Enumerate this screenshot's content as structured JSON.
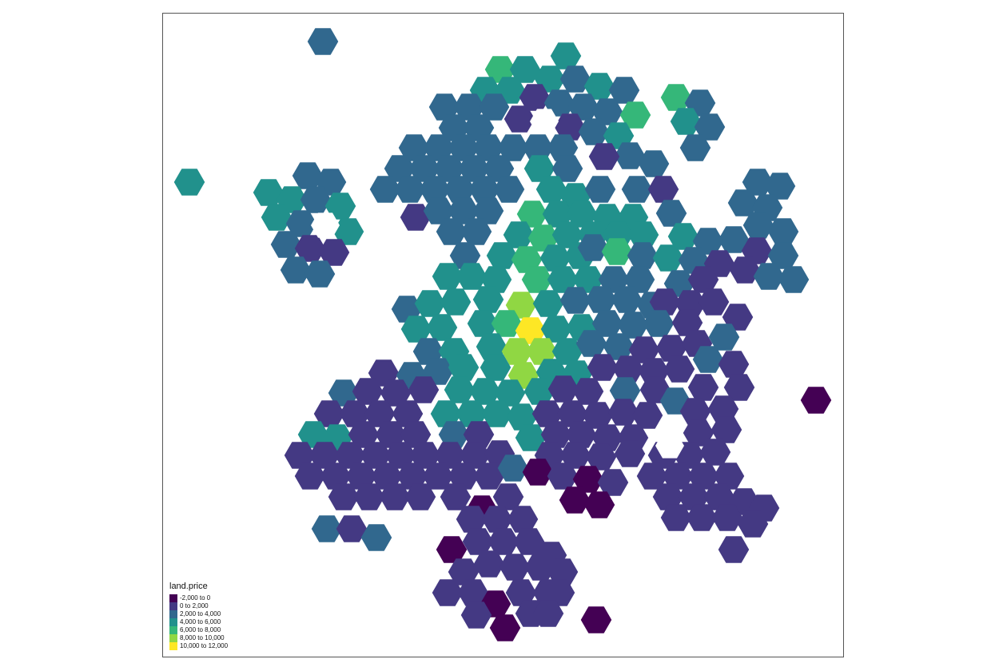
{
  "map": {
    "legend": {
      "title": "land.price",
      "classes": [
        {
          "label": "-2,000 to 0",
          "color": "#440154"
        },
        {
          "label": "0 to 2,000",
          "color": "#443983"
        },
        {
          "label": "2,000 to 4,000",
          "color": "#31688e"
        },
        {
          "label": "4,000 to 6,000",
          "color": "#21918c"
        },
        {
          "label": "6,000 to 8,000",
          "color": "#35b779"
        },
        {
          "label": "8,000 to 10,000",
          "color": "#90d743"
        },
        {
          "label": "10,000 to 12,000",
          "color": "#fde725"
        }
      ]
    }
  }
}
